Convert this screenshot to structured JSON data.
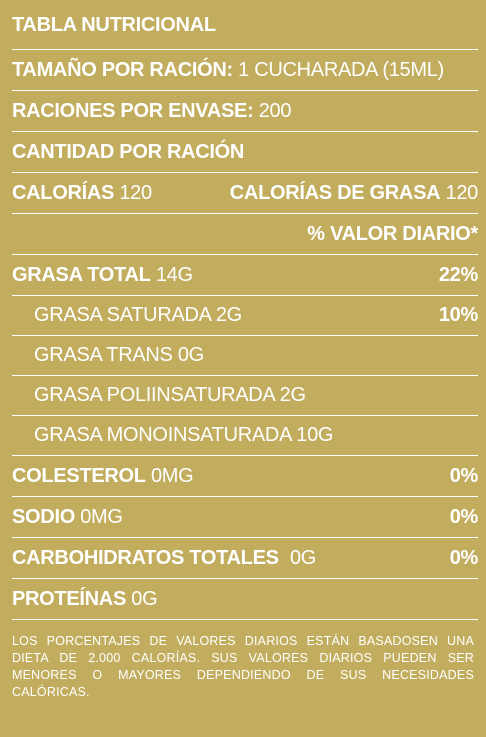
{
  "title": "TABLA NUTRICIONAL",
  "serving_size": {
    "label": "TAMAÑO POR RACIÓN:",
    "value": "1 CUCHARADA (15ML)"
  },
  "servings_per_container": {
    "label": "RACIONES POR ENVASE:",
    "value": "200"
  },
  "amount_per_serving": "CANTIDAD POR RACIÓN",
  "calories": {
    "label": "CALORÍAS",
    "value": "120"
  },
  "fat_calories": {
    "label": "CALORÍAS DE GRASA",
    "value": "120"
  },
  "daily_value_header": "% VALOR DIARIO*",
  "total_fat": {
    "label": "GRASA TOTAL",
    "value": "14G",
    "percent": "22%"
  },
  "saturated_fat": {
    "label": "GRASA SATURADA 2G",
    "percent": "10%"
  },
  "trans_fat": {
    "label": "GRASA TRANS 0G"
  },
  "polyunsaturated_fat": {
    "label": "GRASA POLIINSATURADA 2G"
  },
  "monounsaturated_fat": {
    "label": "GRASA MONOINSATURADA 10G"
  },
  "cholesterol": {
    "label": "COLESTEROL",
    "value": "0MG",
    "percent": "0%"
  },
  "sodium": {
    "label": "SODIO",
    "value": "0MG",
    "percent": "0%"
  },
  "carbohydrates": {
    "label": "CARBOHIDRATOS TOTALES",
    "value": "0G",
    "percent": "0%"
  },
  "protein": {
    "label": "PROTEÍNAS",
    "value": "0G"
  },
  "footnote": "LOS PORCENTAJES DE VALORES DIARIOS ESTÁN BASADOSEN UNA DIETA DE 2.000 CALORÍAS. SUS VALORES DIARIOS PUEDEN SER MENORES O MAYORES DEPENDIENDO DE SUS NECESIDADES CALÓRICAS.",
  "colors": {
    "background": "#c2ad5e",
    "text": "#ffffff",
    "rules": "#ffffff"
  }
}
